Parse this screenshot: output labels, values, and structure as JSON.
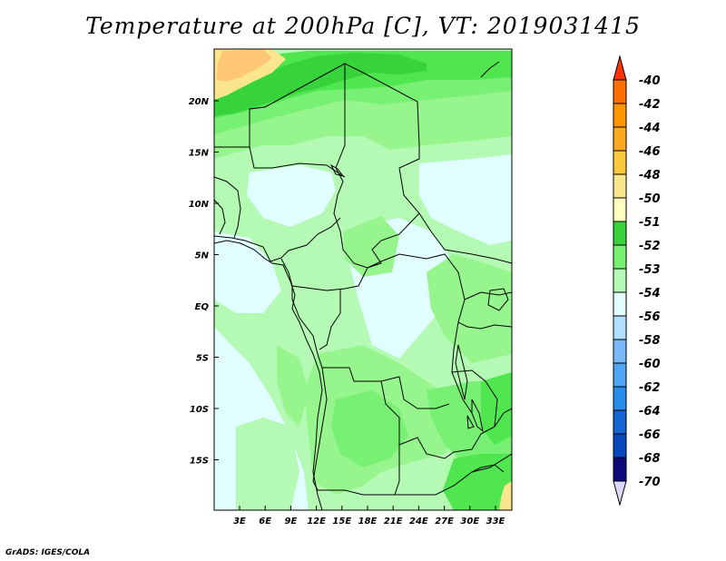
{
  "map": {
    "title": "Temperature at 200hPa [C], VT: 2019031415",
    "credit": "GrADS: IGES/COLA",
    "lon_ticks": [
      "3E",
      "6E",
      "9E",
      "12E",
      "15E",
      "18E",
      "21E",
      "24E",
      "27E",
      "30E",
      "33E"
    ],
    "lat_ticks": [
      "20N",
      "15N",
      "10N",
      "5N",
      "EQ",
      "5S",
      "10S",
      "15S"
    ],
    "colors": {
      "light_cyan": "#e1ffff",
      "pale_green": "#b4fab4",
      "light_green": "#96f58c",
      "green": "#78f073",
      "medium_green": "#50e650",
      "dark_green": "#37d23c",
      "pale_yellow": "#fae68c",
      "light_orange": "#ffc878",
      "border": "#000000"
    }
  },
  "colorbar": {
    "labels": [
      "-40",
      "-42",
      "-44",
      "-46",
      "-48",
      "-50",
      "-51",
      "-52",
      "-53",
      "-54",
      "-56",
      "-58",
      "-60",
      "-62",
      "-64",
      "-66",
      "-68",
      "-70"
    ],
    "colors": [
      "#ff3200",
      "#ff6e00",
      "#ff9600",
      "#ffaa1e",
      "#fac83c",
      "#fae68c",
      "#ffffbe",
      "#37d23c",
      "#78f073",
      "#b4fab4",
      "#e1ffff",
      "#afe1ff",
      "#78b9fa",
      "#50a5f5",
      "#288ceb",
      "#1464d2",
      "#0a46be",
      "#0a0a78",
      "#ddd8fa"
    ]
  }
}
